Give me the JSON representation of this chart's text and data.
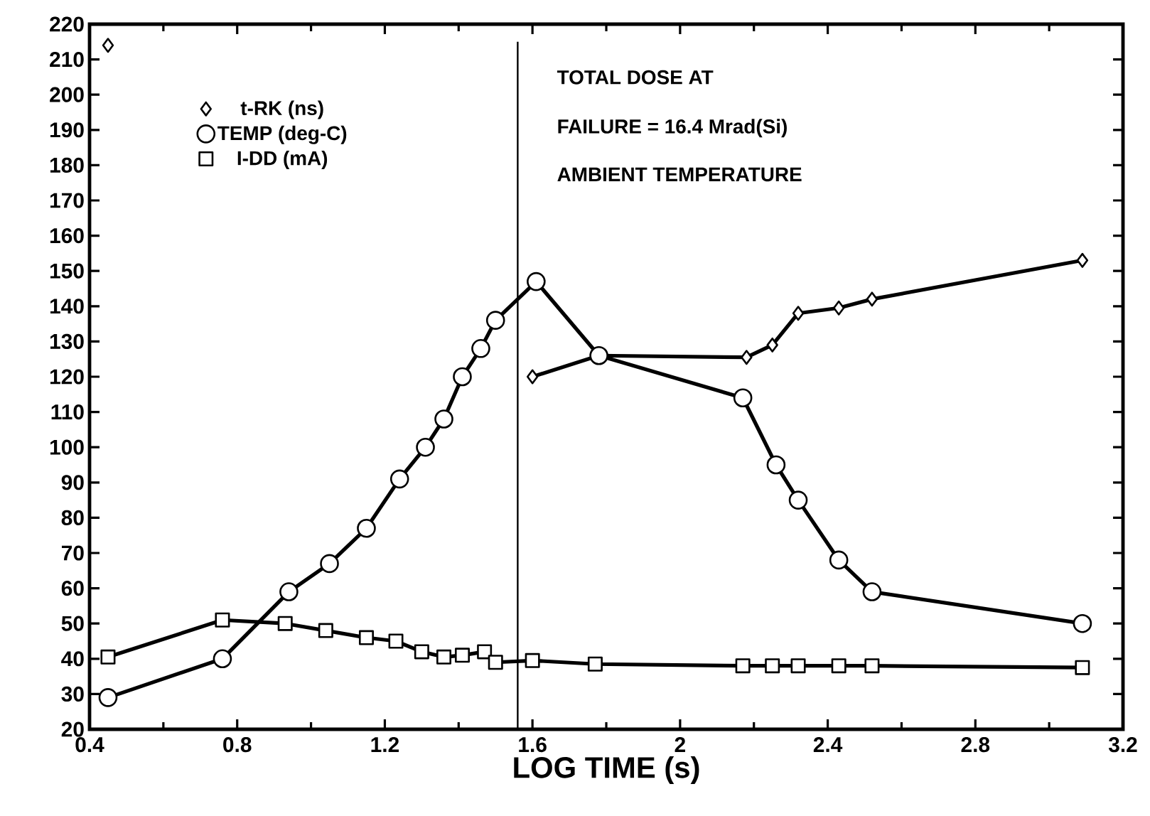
{
  "chart_data": {
    "type": "line",
    "xlabel": "LOG TIME (s)",
    "xlim": [
      0.4,
      3.2
    ],
    "ylim": [
      20,
      220
    ],
    "xticks": [
      0.4,
      0.8,
      1.2,
      1.6,
      2,
      2.4,
      2.8,
      3.2
    ],
    "yticks": [
      20,
      30,
      40,
      50,
      60,
      70,
      80,
      90,
      100,
      110,
      120,
      130,
      140,
      150,
      160,
      170,
      180,
      190,
      200,
      210,
      220
    ],
    "legend": "top left",
    "line_style": "solid",
    "annotations": [
      "TOTAL DOSE AT",
      "FAILURE = 16.4 Mrad(Si)",
      "AMBIENT TEMPERATURE"
    ],
    "ref_lines": [
      {
        "axis": "x",
        "value": 1.56,
        "color": "#000000"
      }
    ],
    "series": [
      {
        "name": "t-RK (ns)",
        "color": "#000000",
        "marker": "diamond",
        "x": [
          0.45,
          1.0,
          1.6,
          1.78,
          2.18,
          2.25,
          2.32,
          2.43,
          2.52,
          3.09
        ],
        "values": [
          214,
          null,
          120,
          126,
          125.5,
          129,
          138,
          139.5,
          142,
          153
        ]
      },
      {
        "name": "TEMP (deg-C)",
        "color": "#000000",
        "marker": "circle",
        "x": [
          0.45,
          0.76,
          0.94,
          1.05,
          1.15,
          1.24,
          1.31,
          1.36,
          1.41,
          1.46,
          1.5,
          1.61,
          1.78,
          2.17,
          2.26,
          2.32,
          2.43,
          2.52,
          3.09
        ],
        "values": [
          29,
          40,
          59,
          67,
          77,
          91,
          100,
          108,
          120,
          128,
          136,
          147,
          126,
          114,
          95,
          85,
          68,
          59,
          50
        ]
      },
      {
        "name": "I-DD (mA)",
        "color": "#000000",
        "marker": "square",
        "x": [
          0.45,
          0.76,
          0.93,
          1.04,
          1.15,
          1.23,
          1.3,
          1.36,
          1.41,
          1.47,
          1.5,
          1.6,
          1.77,
          2.17,
          2.25,
          2.32,
          2.43,
          2.52,
          3.09
        ],
        "values": [
          40.5,
          51,
          50,
          48,
          46,
          45,
          42,
          40.5,
          41,
          42,
          39,
          39.5,
          38.5,
          38,
          38,
          38,
          38,
          38,
          37.5
        ]
      }
    ]
  }
}
